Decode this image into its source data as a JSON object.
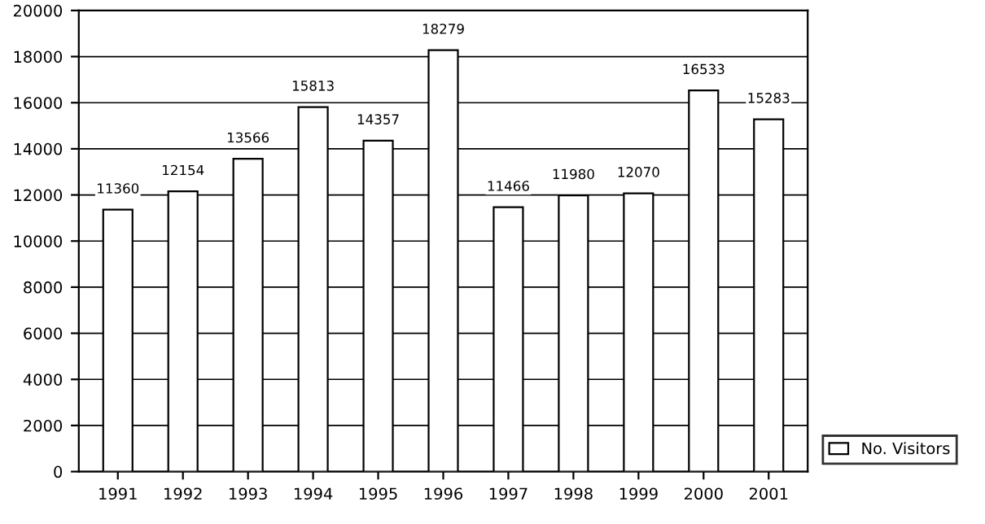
{
  "chart_data": {
    "type": "bar",
    "categories": [
      "1991",
      "1992",
      "1993",
      "1994",
      "1995",
      "1996",
      "1997",
      "1998",
      "1999",
      "2000",
      "2001"
    ],
    "series": [
      {
        "name": "No. Visitors",
        "color": "#ffffff",
        "values": [
          11360,
          12154,
          13566,
          15813,
          14357,
          18279,
          11466,
          11980,
          12070,
          16533,
          15283
        ]
      }
    ],
    "ylim": [
      0,
      20000
    ],
    "yticks": [
      0,
      2000,
      4000,
      6000,
      8000,
      10000,
      12000,
      14000,
      16000,
      18000,
      20000
    ],
    "grid": "y",
    "legend": "bottom right",
    "data_labels": true
  }
}
